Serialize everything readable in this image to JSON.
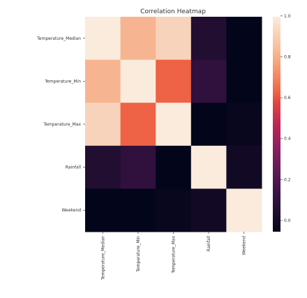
{
  "chart_data": {
    "type": "heatmap",
    "title": "Correlation Heatmap",
    "xlabel": "",
    "ylabel": "",
    "row_labels": [
      "Temperature_Median",
      "Temperature_Min",
      "Temperature_Max",
      "Rainfall",
      "Weekend"
    ],
    "col_labels": [
      "Temperature_Median",
      "Temperature_Min",
      "Temperature_Max",
      "Rainfall",
      "Weekend"
    ],
    "values": [
      [
        1.0,
        0.83,
        0.92,
        0.1,
        0.0
      ],
      [
        0.83,
        1.0,
        0.65,
        0.15,
        0.0
      ],
      [
        0.92,
        0.65,
        1.0,
        0.0,
        0.02
      ],
      [
        0.1,
        0.15,
        0.0,
        1.0,
        0.05
      ],
      [
        0.0,
        0.0,
        0.02,
        0.05,
        1.0
      ]
    ],
    "colorbar": {
      "range": [
        0.0,
        1.0
      ],
      "ticks": [
        "0.0",
        "0.2",
        "0.4",
        "0.6",
        "0.8",
        "1.0"
      ],
      "colormap": "rocket"
    }
  }
}
